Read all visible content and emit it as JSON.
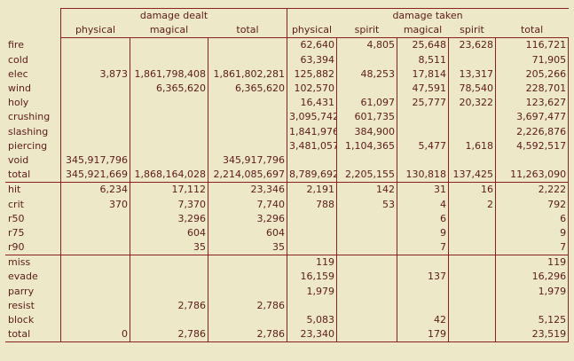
{
  "header": {
    "group_dealt": "damage dealt",
    "group_taken": "damage taken",
    "columns": [
      "physical",
      "magical",
      "total",
      "physical",
      "spirit",
      "magical",
      "spirit",
      "total"
    ]
  },
  "sections": [
    {
      "rows": [
        {
          "label": "fire",
          "cells": [
            "",
            "",
            "",
            "62,640",
            "4,805",
            "25,648",
            "23,628",
            "116,721"
          ]
        },
        {
          "label": "cold",
          "cells": [
            "",
            "",
            "",
            "63,394",
            "",
            "8,511",
            "",
            "71,905"
          ]
        },
        {
          "label": "elec",
          "cells": [
            "3,873",
            "1,861,798,408",
            "1,861,802,281",
            "125,882",
            "48,253",
            "17,814",
            "13,317",
            "205,266"
          ]
        },
        {
          "label": "wind",
          "cells": [
            "",
            "6,365,620",
            "6,365,620",
            "102,570",
            "",
            "47,591",
            "78,540",
            "228,701"
          ]
        },
        {
          "label": "holy",
          "cells": [
            "",
            "",
            "",
            "16,431",
            "61,097",
            "25,777",
            "20,322",
            "123,627"
          ]
        },
        {
          "label": "crushing",
          "cells": [
            "",
            "",
            "",
            "3,095,742",
            "601,735",
            "",
            "",
            "3,697,477"
          ]
        },
        {
          "label": "slashing",
          "cells": [
            "",
            "",
            "",
            "1,841,976",
            "384,900",
            "",
            "",
            "2,226,876"
          ]
        },
        {
          "label": "piercing",
          "cells": [
            "",
            "",
            "",
            "3,481,057",
            "1,104,365",
            "5,477",
            "1,618",
            "4,592,517"
          ]
        },
        {
          "label": "void",
          "cells": [
            "345,917,796",
            "",
            "345,917,796",
            "",
            "",
            "",
            "",
            ""
          ]
        },
        {
          "label": "total",
          "cells": [
            "345,921,669",
            "1,868,164,028",
            "2,214,085,697",
            "8,789,692",
            "2,205,155",
            "130,818",
            "137,425",
            "11,263,090"
          ]
        }
      ]
    },
    {
      "rows": [
        {
          "label": "hit",
          "cells": [
            "6,234",
            "17,112",
            "23,346",
            "2,191",
            "142",
            "31",
            "16",
            "2,222"
          ]
        },
        {
          "label": "crit",
          "cells": [
            "370",
            "7,370",
            "7,740",
            "788",
            "53",
            "4",
            "2",
            "792"
          ]
        },
        {
          "label": "r50",
          "cells": [
            "",
            "3,296",
            "3,296",
            "",
            "",
            "6",
            "",
            "6"
          ]
        },
        {
          "label": "r75",
          "cells": [
            "",
            "604",
            "604",
            "",
            "",
            "9",
            "",
            "9"
          ]
        },
        {
          "label": "r90",
          "cells": [
            "",
            "35",
            "35",
            "",
            "",
            "7",
            "",
            "7"
          ]
        }
      ]
    },
    {
      "rows": [
        {
          "label": "miss",
          "cells": [
            "",
            "",
            "",
            "119",
            "",
            "",
            "",
            "119"
          ]
        },
        {
          "label": "evade",
          "cells": [
            "",
            "",
            "",
            "16,159",
            "",
            "137",
            "",
            "16,296"
          ]
        },
        {
          "label": "parry",
          "cells": [
            "",
            "",
            "",
            "1,979",
            "",
            "",
            "",
            "1,979"
          ]
        },
        {
          "label": "resist",
          "cells": [
            "",
            "2,786",
            "2,786",
            "",
            "",
            "",
            "",
            ""
          ]
        },
        {
          "label": "block",
          "cells": [
            "",
            "",
            "",
            "5,083",
            "",
            "42",
            "",
            "5,125"
          ]
        },
        {
          "label": "total",
          "cells": [
            "0",
            "2,786",
            "2,786",
            "23,340",
            "",
            "179",
            "",
            "23,519"
          ]
        }
      ]
    }
  ]
}
